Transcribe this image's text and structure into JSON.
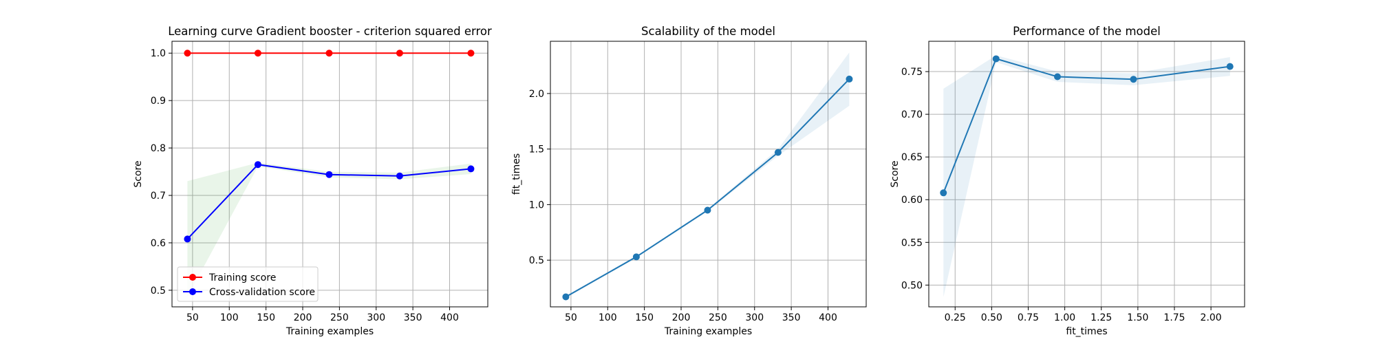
{
  "chart_data": [
    {
      "type": "line",
      "title": "Learning curve Gradient booster - criterion squared error",
      "xlabel": "Training examples",
      "ylabel": "Score",
      "xlim": [
        22,
        452
      ],
      "ylim": [
        0.465,
        1.025
      ],
      "xticks": [
        50,
        100,
        150,
        200,
        250,
        300,
        350,
        400
      ],
      "yticks": [
        0.5,
        0.6,
        0.7,
        0.8,
        0.9,
        1.0
      ],
      "ytick_format": 1,
      "grid": true,
      "legend": {
        "placement": "lower-left",
        "entries": [
          "Training score",
          "Cross-validation score"
        ]
      },
      "series": [
        {
          "name": "Training score",
          "color": "#ff0000",
          "marker": "circle",
          "x": [
            43,
            139,
            236,
            332,
            429
          ],
          "y": [
            1.0,
            1.0,
            1.0,
            1.0,
            1.0
          ],
          "band_lower": [
            1.0,
            1.0,
            1.0,
            1.0,
            1.0
          ],
          "band_upper": [
            1.0,
            1.0,
            1.0,
            1.0,
            1.0
          ],
          "band_color": "#ff0000"
        },
        {
          "name": "Cross-validation score",
          "color": "#0000ff",
          "marker": "circle",
          "x": [
            43,
            139,
            236,
            332,
            429
          ],
          "y": [
            0.608,
            0.765,
            0.744,
            0.741,
            0.756
          ],
          "band_lower": [
            0.486,
            0.761,
            0.738,
            0.734,
            0.745
          ],
          "band_upper": [
            0.73,
            0.769,
            0.75,
            0.748,
            0.767
          ],
          "band_color": "#2ca02c"
        }
      ]
    },
    {
      "type": "line",
      "title": "Scalability of the model",
      "xlabel": "Training examples",
      "ylabel": "fit_times",
      "xlim": [
        22,
        452
      ],
      "ylim": [
        0.08,
        2.47
      ],
      "xticks": [
        50,
        100,
        150,
        200,
        250,
        300,
        350,
        400
      ],
      "yticks": [
        0.5,
        1.0,
        1.5,
        2.0
      ],
      "ytick_format": 1,
      "grid": true,
      "series": [
        {
          "color": "#1f77b4",
          "marker": "circle",
          "x": [
            43,
            139,
            236,
            332,
            429
          ],
          "y": [
            0.17,
            0.53,
            0.95,
            1.47,
            2.13
          ],
          "band_lower": [
            0.16,
            0.52,
            0.94,
            1.44,
            1.89
          ],
          "band_upper": [
            0.18,
            0.54,
            0.96,
            1.5,
            2.37
          ],
          "band_color": "#1f77b4"
        }
      ]
    },
    {
      "type": "line",
      "title": "Performance of the model",
      "xlabel": "fit_times",
      "ylabel": "Score",
      "xlim": [
        0.07,
        2.23
      ],
      "ylim": [
        0.4745,
        0.7855
      ],
      "xticks": [
        0.25,
        0.5,
        0.75,
        1.0,
        1.25,
        1.5,
        1.75,
        2.0
      ],
      "xtick_format": 2,
      "yticks": [
        0.5,
        0.55,
        0.6,
        0.65,
        0.7,
        0.75
      ],
      "ytick_format": 2,
      "grid": true,
      "series": [
        {
          "color": "#1f77b4",
          "marker": "circle",
          "x": [
            0.17,
            0.53,
            0.95,
            1.47,
            2.13
          ],
          "y": [
            0.608,
            0.765,
            0.744,
            0.741,
            0.756
          ],
          "band_lower": [
            0.486,
            0.761,
            0.738,
            0.734,
            0.745
          ],
          "band_upper": [
            0.73,
            0.769,
            0.75,
            0.748,
            0.767
          ],
          "band_color": "#1f77b4"
        }
      ]
    }
  ]
}
